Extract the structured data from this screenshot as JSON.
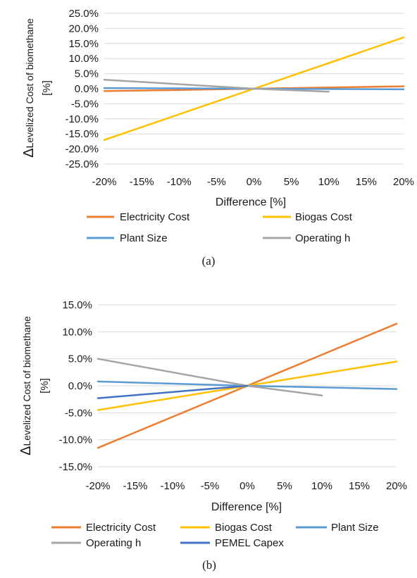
{
  "chart_data": [
    {
      "type": "line",
      "caption": "(a)",
      "ylabel_symbol": "Δ",
      "ylabel": "Levelized Cost of biomethane",
      "ylabel_unit": "[%]",
      "xlabel": "Difference [%]",
      "x_tick_labels": [
        "-20%",
        "-15%",
        "-10%",
        "-5%",
        "0%",
        "5%",
        "10%",
        "15%",
        "20%"
      ],
      "y_tick_labels": [
        "25.0%",
        "20.0%",
        "15.0%",
        "10.0%",
        "5.0%",
        "0.0%",
        "-5.0%",
        "-10.0%",
        "-15.0%",
        "-20.0%",
        "-25.0%"
      ],
      "xlim": [
        -20,
        20
      ],
      "ylim": [
        -25,
        25
      ],
      "y_step": 5,
      "grid": true,
      "legend_position": "bottom",
      "series": [
        {
          "name": "Electricity Cost",
          "color": "#ED7D31",
          "x": [
            -20,
            0,
            20
          ],
          "y": [
            -0.8,
            0,
            0.8
          ]
        },
        {
          "name": "Biogas Cost",
          "color": "#FFC000",
          "x": [
            -20,
            0,
            20
          ],
          "y": [
            -17,
            0,
            17
          ]
        },
        {
          "name": "Plant Size",
          "color": "#5B9BD5",
          "x": [
            -20,
            0,
            20
          ],
          "y": [
            0.2,
            0,
            -0.2
          ]
        },
        {
          "name": "Operating h",
          "color": "#A5A5A5",
          "x": [
            -20,
            0,
            10
          ],
          "y": [
            3,
            0,
            -1
          ]
        }
      ]
    },
    {
      "type": "line",
      "caption": "(b)",
      "ylabel_symbol": "Δ",
      "ylabel": "Levelized Cost of biomethane",
      "ylabel_unit": "[%]",
      "xlabel": "Difference [%]",
      "x_tick_labels": [
        "-20%",
        "-15%",
        "-10%",
        "-5%",
        "0%",
        "5%",
        "10%",
        "15%",
        "20%"
      ],
      "y_tick_labels": [
        "15.0%",
        "10.0%",
        "5.0%",
        "0.0%",
        "-5.0%",
        "-10.0%",
        "-15.0%"
      ],
      "xlim": [
        -20,
        20
      ],
      "ylim": [
        -15,
        15
      ],
      "y_step": 5,
      "grid": true,
      "legend_position": "bottom",
      "series": [
        {
          "name": "Electricity Cost",
          "color": "#ED7D31",
          "x": [
            -20,
            0,
            20
          ],
          "y": [
            -11.5,
            0,
            11.5
          ]
        },
        {
          "name": "Biogas Cost",
          "color": "#FFC000",
          "x": [
            -20,
            0,
            20
          ],
          "y": [
            -4.5,
            0,
            4.5
          ]
        },
        {
          "name": "Plant Size",
          "color": "#5B9BD5",
          "x": [
            -20,
            0,
            20
          ],
          "y": [
            0.8,
            0,
            -0.6
          ]
        },
        {
          "name": "Operating h",
          "color": "#A5A5A5",
          "x": [
            -20,
            0,
            10
          ],
          "y": [
            5,
            0,
            -1.8
          ]
        },
        {
          "name": "PEMEL Capex",
          "color": "#4472C4",
          "x": [
            -20,
            0
          ],
          "y": [
            -2.3,
            0
          ]
        }
      ]
    }
  ]
}
